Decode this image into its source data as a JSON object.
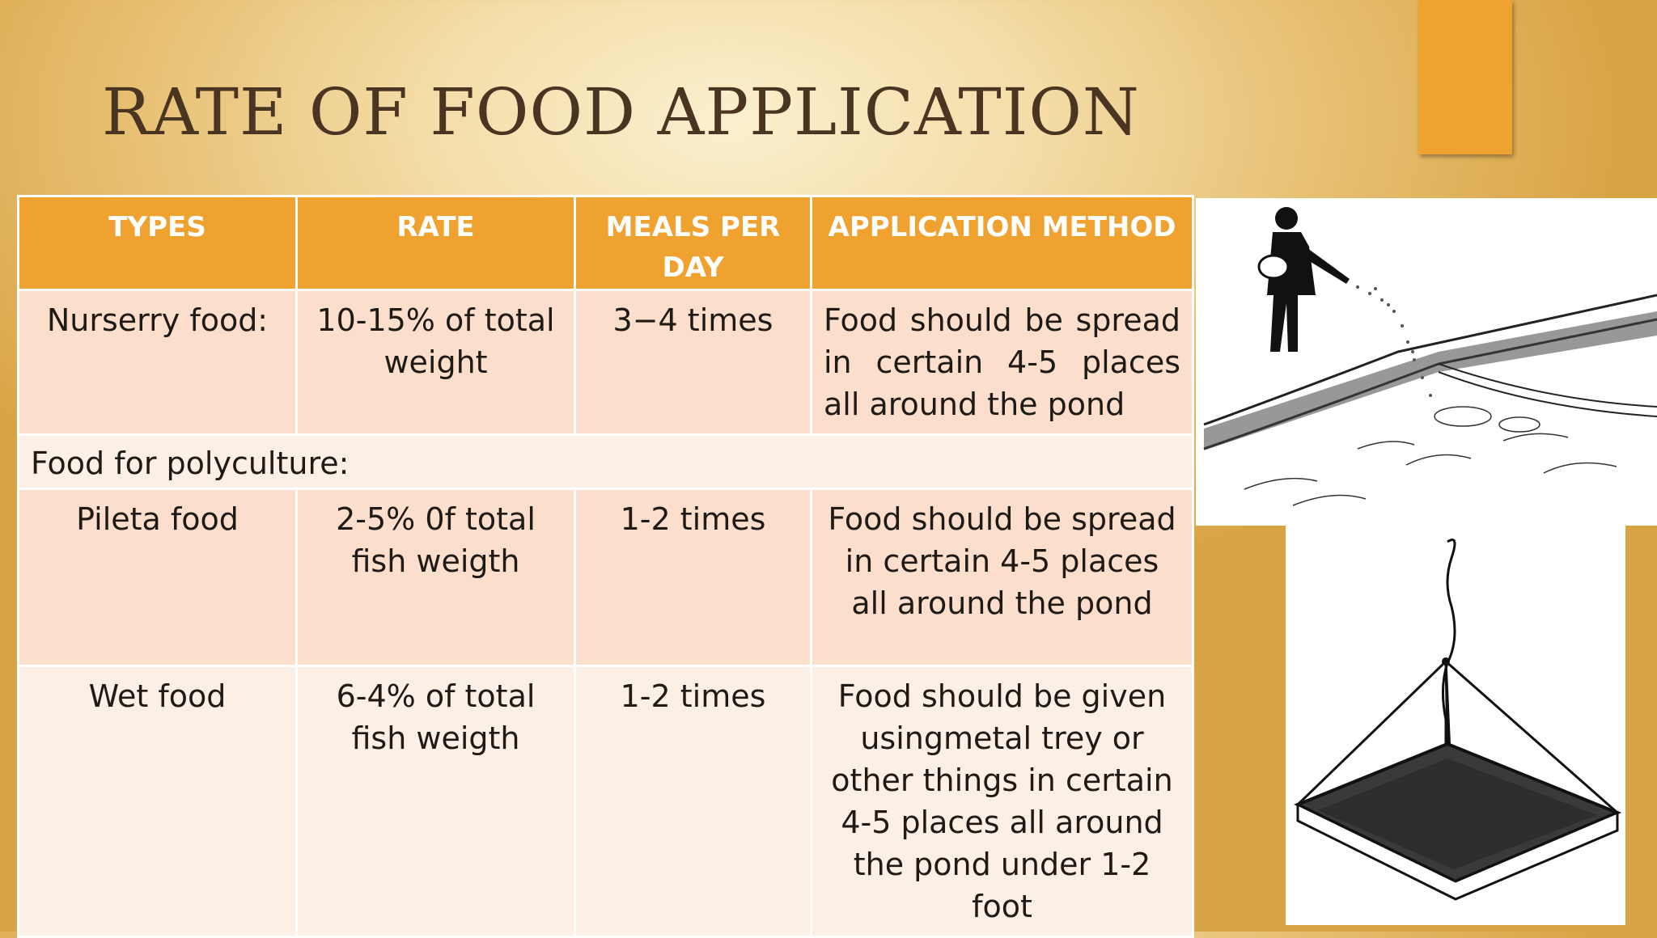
{
  "title": "RATE OF FOOD APPLICATION",
  "colors": {
    "accent": "#f0a231",
    "title": "#4a3422",
    "row_dark": "#fbdfcc",
    "row_light": "#fcefe6"
  },
  "table": {
    "headers": [
      "TYPES",
      "RATE",
      "MEALS PER DAY",
      "APPLICATION METHOD"
    ],
    "rows": [
      {
        "type": "Nurserry food:",
        "rate": "10-15% of total weight",
        "meals": "3−4 times",
        "method": "Food should be spread in certain 4-5 places all around the pond"
      },
      {
        "section": "Food for polyculture:"
      },
      {
        "type": "Pileta food",
        "rate": "2-5% 0f total fish weigth",
        "meals": "1-2 times",
        "method": "Food should be spread in certain 4-5 places all around the pond"
      },
      {
        "type": "Wet food",
        "rate": "6-4% of total fish weigth",
        "meals": "1-2 times",
        "method": "Food should be given usingmetal trey or other things in certain 4-5 places all around the pond under 1-2 foot"
      }
    ]
  },
  "images": {
    "pond_illustration": "person-spreading-feed-icon",
    "tray_illustration": "feeding-tray-icon"
  }
}
